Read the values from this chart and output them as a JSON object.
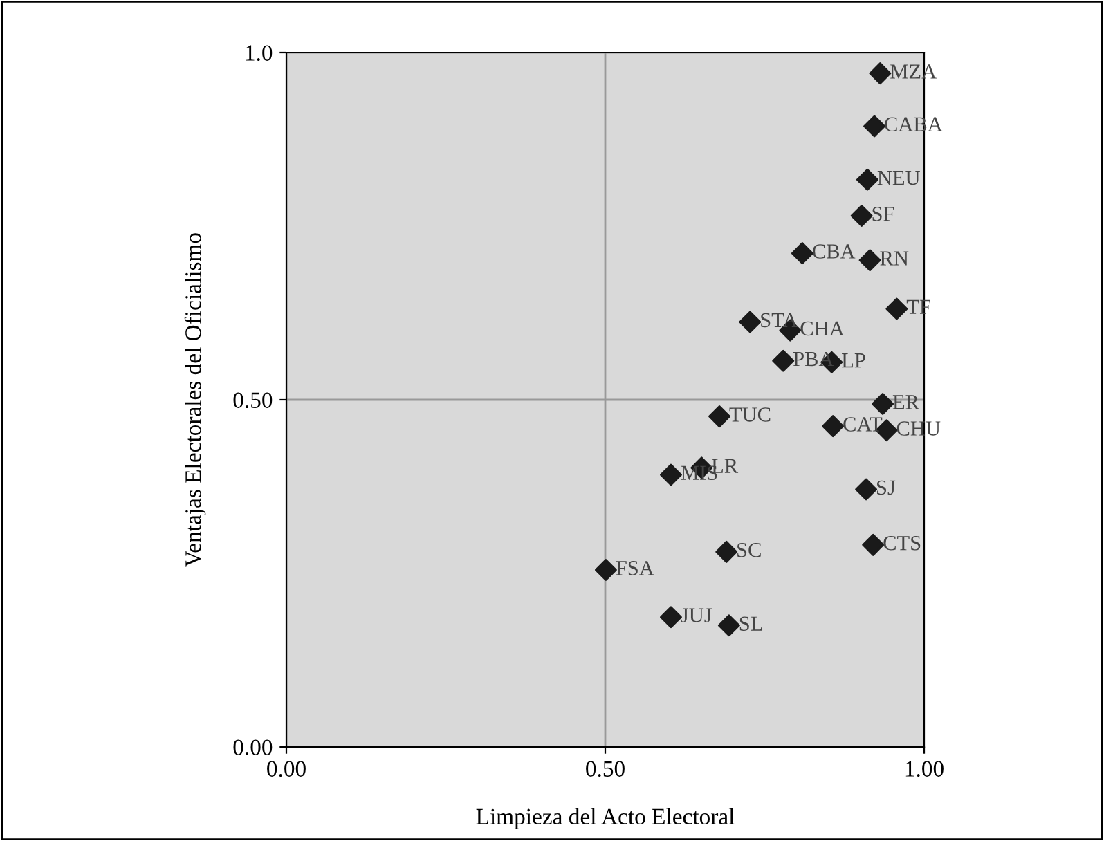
{
  "chart_data": {
    "type": "scatter",
    "xlabel": "Limpieza del Acto Electoral",
    "ylabel": "Ventajas Electorales del Oficialismo",
    "x": [
      0.931,
      0.922,
      0.911,
      0.902,
      0.809,
      0.915,
      0.957,
      0.727,
      0.79,
      0.779,
      0.855,
      0.935,
      0.679,
      0.857,
      0.941,
      0.651,
      0.603,
      0.909,
      0.92,
      0.69,
      0.501,
      0.603,
      0.694
    ],
    "series": [
      {
        "color": "#1a1a1a",
        "values": [
          0.97,
          0.894,
          0.817,
          0.765,
          0.711,
          0.701,
          0.631,
          0.612,
          0.6,
          0.556,
          0.554,
          0.494,
          0.476,
          0.462,
          0.456,
          0.402,
          0.392,
          0.371,
          0.291,
          0.281,
          0.255,
          0.187,
          0.175
        ]
      }
    ],
    "annotations": [
      {
        "text": "MZA",
        "x": 0.931,
        "y": 0.97
      },
      {
        "text": "CABA",
        "x": 0.922,
        "y": 0.894
      },
      {
        "text": "NEU",
        "x": 0.911,
        "y": 0.817
      },
      {
        "text": "SF",
        "x": 0.902,
        "y": 0.765
      },
      {
        "text": "CBA",
        "x": 0.809,
        "y": 0.711
      },
      {
        "text": "RN",
        "x": 0.915,
        "y": 0.701
      },
      {
        "text": "TF",
        "x": 0.957,
        "y": 0.631
      },
      {
        "text": "STA",
        "x": 0.727,
        "y": 0.612
      },
      {
        "text": "CHA",
        "x": 0.79,
        "y": 0.6
      },
      {
        "text": "PBA",
        "x": 0.779,
        "y": 0.556
      },
      {
        "text": "LP",
        "x": 0.855,
        "y": 0.554
      },
      {
        "text": "ER",
        "x": 0.935,
        "y": 0.494
      },
      {
        "text": "TUC",
        "x": 0.679,
        "y": 0.476
      },
      {
        "text": "CAT",
        "x": 0.857,
        "y": 0.462
      },
      {
        "text": "CHU",
        "x": 0.941,
        "y": 0.456
      },
      {
        "text": "LR",
        "x": 0.651,
        "y": 0.402
      },
      {
        "text": "MIS",
        "x": 0.603,
        "y": 0.392
      },
      {
        "text": "SJ",
        "x": 0.909,
        "y": 0.371
      },
      {
        "text": "CTS",
        "x": 0.92,
        "y": 0.291
      },
      {
        "text": "SC",
        "x": 0.69,
        "y": 0.281
      },
      {
        "text": "FSA",
        "x": 0.501,
        "y": 0.255
      },
      {
        "text": "JUJ",
        "x": 0.603,
        "y": 0.187
      },
      {
        "text": "SL",
        "x": 0.694,
        "y": 0.175
      }
    ],
    "xlim": [
      0,
      1
    ],
    "ylim": [
      0,
      1
    ],
    "xticks": [
      {
        "value": 0,
        "label": "0.00"
      },
      {
        "value": 0.5,
        "label": "0.50"
      },
      {
        "value": 1,
        "label": "1.00"
      }
    ],
    "yticks": [
      {
        "value": 0,
        "label": "0.00"
      },
      {
        "value": 0.5,
        "label": "0.50"
      },
      {
        "value": 1,
        "label": "1.0"
      }
    ],
    "grid": true,
    "marker": "diamond",
    "legend": false
  }
}
